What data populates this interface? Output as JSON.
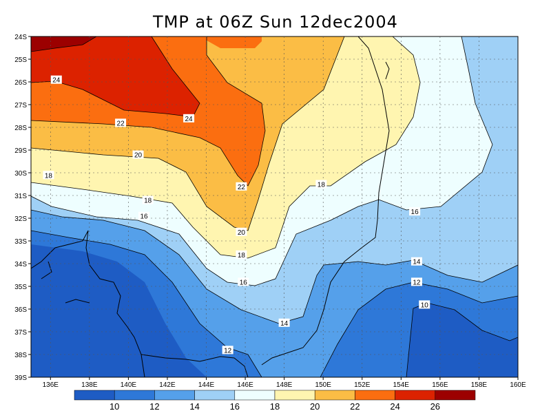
{
  "title": "TMP at 06Z Sun 12dec2004",
  "map": {
    "lat_labels": [
      "24S",
      "25S",
      "26S",
      "27S",
      "28S",
      "29S",
      "30S",
      "31S",
      "32S",
      "33S",
      "34S",
      "35S",
      "36S",
      "37S",
      "38S",
      "39S"
    ],
    "lon_labels": [
      "136E",
      "138E",
      "140E",
      "142E",
      "144E",
      "146E",
      "148E",
      "150E",
      "152E",
      "154E",
      "156E",
      "158E",
      "160E"
    ],
    "contour_labels": [
      {
        "text": "24",
        "lon": 136.3,
        "lat": 25.9
      },
      {
        "text": "24",
        "lon": 143.1,
        "lat": 27.6
      },
      {
        "text": "22",
        "lon": 139.6,
        "lat": 27.8
      },
      {
        "text": "22",
        "lon": 145.8,
        "lat": 30.6
      },
      {
        "text": "20",
        "lon": 140.5,
        "lat": 29.2
      },
      {
        "text": "20",
        "lon": 145.8,
        "lat": 32.6
      },
      {
        "text": "18",
        "lon": 135.9,
        "lat": 30.1
      },
      {
        "text": "18",
        "lon": 141.0,
        "lat": 31.2
      },
      {
        "text": "18",
        "lon": 145.8,
        "lat": 33.6
      },
      {
        "text": "18",
        "lon": 149.9,
        "lat": 30.5
      },
      {
        "text": "16",
        "lon": 140.8,
        "lat": 31.9
      },
      {
        "text": "16",
        "lon": 145.9,
        "lat": 34.8
      },
      {
        "text": "16",
        "lon": 154.7,
        "lat": 31.7
      },
      {
        "text": "14",
        "lon": 148.0,
        "lat": 36.6
      },
      {
        "text": "14",
        "lon": 154.8,
        "lat": 33.9
      },
      {
        "text": "12",
        "lon": 154.8,
        "lat": 34.8
      },
      {
        "text": "12",
        "lon": 145.1,
        "lat": 37.8
      },
      {
        "text": "10",
        "lon": 155.2,
        "lat": 35.8
      }
    ]
  },
  "colorbar": {
    "labels": [
      "10",
      "12",
      "14",
      "16",
      "18",
      "20",
      "22",
      "24",
      "26"
    ],
    "colors": [
      "#1e5cc4",
      "#2e78d8",
      "#55a0ea",
      "#9fd0f6",
      "#eefeff",
      "#fff5b0",
      "#fbbd45",
      "#fb6e10",
      "#dc2200",
      "#9c0000"
    ]
  }
}
